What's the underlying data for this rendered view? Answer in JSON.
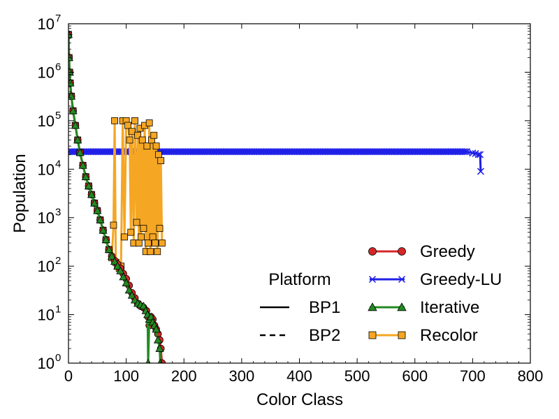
{
  "chart_data": {
    "type": "line",
    "xlabel": "Color Class",
    "ylabel": "Population",
    "xlim": [
      0,
      800
    ],
    "ylim": [
      1,
      10000000
    ],
    "yscale": "log",
    "grid": false,
    "x_ticks": [
      "0",
      "100",
      "200",
      "300",
      "400",
      "500",
      "600",
      "700",
      "800"
    ],
    "y_ticks": [
      {
        "base": "10",
        "exp": "0"
      },
      {
        "base": "10",
        "exp": "1"
      },
      {
        "base": "10",
        "exp": "2"
      },
      {
        "base": "10",
        "exp": "3"
      },
      {
        "base": "10",
        "exp": "4"
      },
      {
        "base": "10",
        "exp": "5"
      },
      {
        "base": "10",
        "exp": "6"
      },
      {
        "base": "10",
        "exp": "7"
      }
    ],
    "platform_legend": {
      "title": "Platform",
      "placement": "lower-center",
      "entries": [
        {
          "label": "BP1",
          "style": "solid"
        },
        {
          "label": "BP2",
          "style": "dashed"
        }
      ]
    },
    "series_legend": {
      "placement": "lower-right"
    },
    "series": [
      {
        "name": "Greedy",
        "color": "#d62728",
        "marker": "circle",
        "points": [
          [
            0,
            6000000
          ],
          [
            1,
            2000000
          ],
          [
            2,
            1000000
          ],
          [
            3,
            600000
          ],
          [
            5,
            320000
          ],
          [
            8,
            160000
          ],
          [
            12,
            80000
          ],
          [
            16,
            40000
          ],
          [
            20,
            22000
          ],
          [
            25,
            12000
          ],
          [
            30,
            7000
          ],
          [
            35,
            4500
          ],
          [
            40,
            3000
          ],
          [
            45,
            2000
          ],
          [
            50,
            1400
          ],
          [
            55,
            900
          ],
          [
            60,
            550
          ],
          [
            65,
            350
          ],
          [
            70,
            220
          ],
          [
            75,
            160
          ],
          [
            80,
            130
          ],
          [
            85,
            110
          ],
          [
            90,
            90
          ],
          [
            95,
            70
          ],
          [
            100,
            55
          ],
          [
            105,
            40
          ],
          [
            110,
            28
          ],
          [
            115,
            22
          ],
          [
            120,
            17
          ],
          [
            125,
            15
          ],
          [
            130,
            14
          ],
          [
            135,
            12
          ],
          [
            138,
            9
          ],
          [
            140,
            6
          ],
          [
            143,
            9
          ],
          [
            146,
            8
          ],
          [
            149,
            6
          ],
          [
            152,
            5
          ],
          [
            155,
            4
          ],
          [
            158,
            3
          ],
          [
            160,
            2
          ],
          [
            162,
            1
          ]
        ]
      },
      {
        "name": "Greedy-LU",
        "color": "#1f1fe8",
        "marker": "x",
        "points": [
          [
            0,
            23000
          ],
          [
            50,
            23000
          ],
          [
            100,
            23000
          ],
          [
            150,
            23000
          ],
          [
            200,
            23000
          ],
          [
            250,
            23000
          ],
          [
            300,
            23000
          ],
          [
            350,
            23000
          ],
          [
            400,
            23000
          ],
          [
            450,
            23000
          ],
          [
            500,
            23000
          ],
          [
            550,
            23000
          ],
          [
            600,
            23000
          ],
          [
            650,
            23000
          ],
          [
            690,
            23000
          ],
          [
            700,
            21500
          ],
          [
            705,
            21000
          ],
          [
            710,
            20000
          ],
          [
            713,
            20000
          ],
          [
            714,
            9000
          ]
        ]
      },
      {
        "name": "Iterative",
        "color": "#228b22",
        "marker": "triangle",
        "points": [
          [
            0,
            6000000
          ],
          [
            1,
            2000000
          ],
          [
            2,
            1000000
          ],
          [
            3,
            600000
          ],
          [
            5,
            320000
          ],
          [
            8,
            160000
          ],
          [
            12,
            80000
          ],
          [
            16,
            40000
          ],
          [
            20,
            22000
          ],
          [
            25,
            12000
          ],
          [
            30,
            7000
          ],
          [
            35,
            4500
          ],
          [
            40,
            3000
          ],
          [
            45,
            2000
          ],
          [
            50,
            1400
          ],
          [
            55,
            900
          ],
          [
            60,
            550
          ],
          [
            65,
            350
          ],
          [
            70,
            220
          ],
          [
            75,
            160
          ],
          [
            80,
            125
          ],
          [
            85,
            100
          ],
          [
            90,
            80
          ],
          [
            95,
            60
          ],
          [
            100,
            45
          ],
          [
            105,
            32
          ],
          [
            110,
            25
          ],
          [
            115,
            20
          ],
          [
            120,
            17
          ],
          [
            125,
            16
          ],
          [
            130,
            15
          ],
          [
            134,
            12
          ],
          [
            137,
            10
          ],
          [
            138,
            1
          ],
          [
            140,
            8
          ],
          [
            143,
            9
          ],
          [
            146,
            7
          ],
          [
            149,
            6
          ],
          [
            152,
            5
          ],
          [
            155,
            3
          ],
          [
            158,
            2
          ],
          [
            159,
            1
          ]
        ]
      },
      {
        "name": "Recolor",
        "color": "#f5a623",
        "marker": "square",
        "points": [
          [
            0,
            6000000
          ],
          [
            1,
            2000000
          ],
          [
            2,
            1000000
          ],
          [
            3,
            600000
          ],
          [
            5,
            320000
          ],
          [
            8,
            160000
          ],
          [
            12,
            80000
          ],
          [
            16,
            40000
          ],
          [
            20,
            22000
          ],
          [
            25,
            12000
          ],
          [
            30,
            7000
          ],
          [
            35,
            4500
          ],
          [
            40,
            3000
          ],
          [
            45,
            2000
          ],
          [
            50,
            1400
          ],
          [
            55,
            900
          ],
          [
            60,
            550
          ],
          [
            65,
            350
          ],
          [
            70,
            220
          ],
          [
            75,
            150
          ],
          [
            78,
            700
          ],
          [
            80,
            100000
          ],
          [
            82,
            120
          ],
          [
            85,
            100
          ],
          [
            88,
            90
          ],
          [
            91,
            100
          ],
          [
            94,
            100000
          ],
          [
            97,
            400
          ],
          [
            100,
            100000
          ],
          [
            103,
            80000
          ],
          [
            106,
            40000
          ],
          [
            108,
            500
          ],
          [
            110,
            60000
          ],
          [
            113,
            300
          ],
          [
            115,
            100000
          ],
          [
            118,
            800
          ],
          [
            120,
            50000
          ],
          [
            122,
            300
          ],
          [
            124,
            70000
          ],
          [
            126,
            400
          ],
          [
            128,
            40000
          ],
          [
            130,
            600
          ],
          [
            132,
            80000
          ],
          [
            134,
            200
          ],
          [
            136,
            30000
          ],
          [
            138,
            300
          ],
          [
            140,
            90000
          ],
          [
            142,
            200
          ],
          [
            144,
            40000
          ],
          [
            146,
            400
          ],
          [
            148,
            50000
          ],
          [
            150,
            300
          ],
          [
            152,
            30000
          ],
          [
            154,
            200
          ],
          [
            156,
            20000
          ],
          [
            158,
            600
          ],
          [
            160,
            15000
          ],
          [
            162,
            300
          ]
        ]
      }
    ]
  }
}
